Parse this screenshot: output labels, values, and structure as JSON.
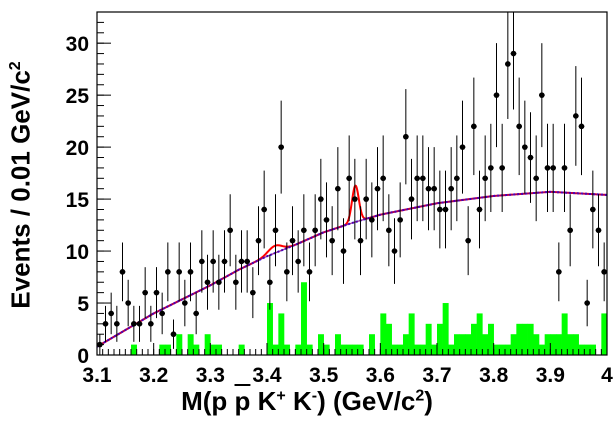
{
  "chart_data": {
    "type": "scatter",
    "title": "",
    "xlabel": {
      "prefix": "M(p ",
      "pbar": "p",
      "mid": " K",
      "kp": "+",
      "sp": " K",
      "km": "-",
      "suffix": ") (GeV/c",
      "two": "2",
      "end": ")"
    },
    "ylabel": "Events / 0.01 GeV/c",
    "ylabel_sup": "2",
    "xlim": [
      3.1,
      4.0
    ],
    "ylim": [
      0,
      33
    ],
    "xticks": [
      "3.1",
      "3.2",
      "3.3",
      "3.4",
      "3.5",
      "3.6",
      "3.7",
      "3.8",
      "3.9",
      "4"
    ],
    "yticks": [
      "0",
      "5",
      "10",
      "15",
      "20",
      "25",
      "30"
    ],
    "data_points": {
      "x": [
        3.105,
        3.115,
        3.125,
        3.135,
        3.145,
        3.155,
        3.165,
        3.175,
        3.185,
        3.195,
        3.205,
        3.215,
        3.225,
        3.235,
        3.245,
        3.255,
        3.265,
        3.275,
        3.285,
        3.295,
        3.305,
        3.315,
        3.325,
        3.335,
        3.345,
        3.355,
        3.365,
        3.375,
        3.385,
        3.395,
        3.405,
        3.415,
        3.425,
        3.435,
        3.445,
        3.455,
        3.465,
        3.475,
        3.485,
        3.495,
        3.505,
        3.515,
        3.525,
        3.535,
        3.545,
        3.555,
        3.565,
        3.575,
        3.585,
        3.595,
        3.605,
        3.615,
        3.625,
        3.635,
        3.645,
        3.655,
        3.665,
        3.675,
        3.685,
        3.695,
        3.705,
        3.715,
        3.725,
        3.735,
        3.745,
        3.755,
        3.765,
        3.775,
        3.785,
        3.795,
        3.805,
        3.815,
        3.825,
        3.835,
        3.845,
        3.855,
        3.865,
        3.875,
        3.885,
        3.895,
        3.905,
        3.915,
        3.925,
        3.935,
        3.945,
        3.955,
        3.965,
        3.975,
        3.985,
        3.995
      ],
      "y": [
        1,
        3,
        4,
        3,
        8,
        5,
        3,
        3,
        6,
        3,
        6,
        4,
        8,
        2,
        8,
        5,
        8,
        4,
        9,
        7,
        9,
        7,
        9,
        12,
        7,
        9,
        9,
        6,
        11,
        14,
        7,
        12,
        20,
        8,
        11,
        9,
        12,
        8,
        12,
        15,
        13,
        11,
        16,
        10,
        17,
        15,
        11,
        15,
        13,
        16,
        17,
        12,
        10,
        13,
        21,
        15,
        17,
        17,
        16,
        16,
        14,
        14,
        16,
        17,
        20,
        11,
        22,
        14,
        17,
        18,
        25,
        18,
        28,
        29,
        22,
        20,
        19,
        17,
        25,
        18,
        18,
        8,
        18,
        12,
        23,
        22,
        5,
        14,
        12,
        8
      ]
    },
    "background_hist": [
      0,
      0,
      0,
      0,
      0,
      0,
      1,
      0,
      0,
      0,
      0,
      1,
      1,
      0,
      2,
      0,
      2,
      1,
      0,
      2,
      1,
      1,
      0,
      0,
      0,
      1,
      0,
      0,
      0,
      0,
      5,
      1,
      4,
      1,
      0,
      1,
      7,
      1,
      0,
      2,
      1,
      0,
      2,
      1,
      1,
      1,
      1,
      0,
      2,
      0,
      4,
      3,
      1,
      1,
      2,
      4,
      1,
      1,
      3,
      1,
      3,
      5,
      1,
      2,
      2,
      2,
      3,
      4,
      2,
      3,
      1,
      1,
      1,
      2,
      3,
      3,
      3,
      2,
      1,
      2,
      2,
      2,
      4,
      2,
      2,
      1,
      1,
      1,
      0,
      4
    ],
    "fit_line": {
      "points": [
        [
          3.1,
          0.8
        ],
        [
          3.2,
          4.0
        ],
        [
          3.3,
          6.7
        ],
        [
          3.35,
          8.2
        ],
        [
          3.4,
          9.5
        ],
        [
          3.45,
          10.6
        ],
        [
          3.5,
          11.8
        ],
        [
          3.55,
          12.7
        ],
        [
          3.6,
          13.5
        ],
        [
          3.7,
          14.6
        ],
        [
          3.8,
          15.3
        ],
        [
          3.9,
          15.7
        ],
        [
          4.0,
          15.4
        ]
      ],
      "peaks": [
        {
          "center": 3.414,
          "height": 0.7,
          "width": 0.012
        },
        {
          "center": 3.556,
          "height": 3.5,
          "width": 0.006
        }
      ]
    },
    "colors": {
      "hist": "#00ff00",
      "total_fit": "#ff0000",
      "bkg_fit": "#0000ff",
      "combined": "#800080",
      "points": "#000000"
    },
    "grid": false,
    "legend": "none"
  }
}
